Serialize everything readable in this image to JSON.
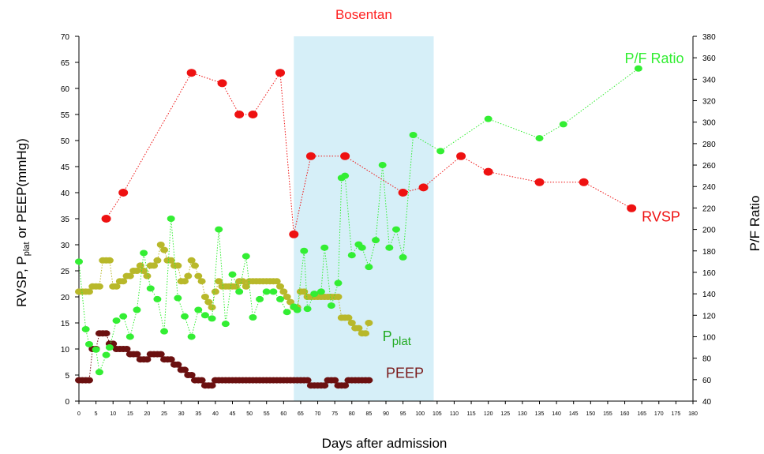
{
  "chart_data": {
    "type": "scatter",
    "x_label": "Days  after admission",
    "y_left_label": "RVSP, P",
    "y_left_sub": "plat",
    "y_left_label_rest": " or PEEP(mmHg)",
    "y_right_label": "P/F Ratio",
    "x_ticks": [
      0,
      5,
      10,
      15,
      20,
      25,
      30,
      35,
      40,
      45,
      50,
      55,
      60,
      65,
      70,
      75,
      80,
      85,
      90,
      95,
      100,
      105,
      110,
      115,
      120,
      125,
      130,
      135,
      140,
      145,
      150,
      155,
      160,
      165,
      170,
      175,
      180
    ],
    "y_left_ticks": [
      0,
      5,
      10,
      15,
      20,
      25,
      30,
      35,
      40,
      45,
      50,
      55,
      60,
      65,
      70
    ],
    "y_right_ticks": [
      40,
      60,
      80,
      100,
      120,
      140,
      160,
      180,
      200,
      220,
      240,
      260,
      280,
      300,
      320,
      340,
      360,
      380
    ],
    "xlim": [
      0,
      180
    ],
    "ylim_left": [
      0,
      70
    ],
    "ylim_right": [
      40,
      380
    ],
    "shaded_region": {
      "label": "Bosentan",
      "x_start": 63,
      "x_end": 104,
      "color": "#d6eff8",
      "label_color": "#ff2020"
    },
    "series": [
      {
        "name": "RVSP",
        "axis": "left",
        "color": "#ee1111",
        "label_color": "#ee1111",
        "label_x": 165,
        "label_y": 34.5,
        "x": [
          8,
          13,
          33,
          42,
          47,
          51,
          59,
          63,
          68,
          78,
          95,
          101,
          112,
          120,
          135,
          148,
          162
        ],
        "y": [
          35,
          40,
          63,
          61,
          55,
          55,
          63,
          32,
          47,
          47,
          40,
          41,
          47,
          44,
          42,
          42,
          37
        ]
      },
      {
        "name": "P/F Ratio",
        "axis": "right",
        "color": "#33ee33",
        "label_color": "#33ee33",
        "label_x": 160,
        "label_y": 355,
        "x": [
          0,
          2,
          3,
          5,
          6,
          8,
          9,
          11,
          13,
          15,
          17,
          19,
          21,
          23,
          25,
          27,
          29,
          31,
          33,
          35,
          37,
          39,
          41,
          43,
          45,
          47,
          49,
          51,
          53,
          55,
          57,
          59,
          61,
          63,
          64,
          66,
          67,
          69,
          71,
          72,
          74,
          76,
          77,
          78,
          80,
          82,
          83,
          85,
          87,
          89,
          91,
          93,
          95,
          98,
          106,
          120,
          135,
          142,
          164
        ],
        "x_jitter": [
          0,
          1,
          1,
          1,
          1,
          1,
          1,
          1,
          1,
          1,
          1,
          1,
          1,
          1,
          1,
          1,
          1,
          1,
          1,
          1,
          1,
          1,
          1,
          1,
          1,
          1,
          1,
          1,
          1,
          1,
          1,
          1,
          1,
          1,
          1,
          1,
          1,
          1,
          1,
          1,
          1,
          1,
          1,
          1,
          1,
          1,
          1,
          1,
          1,
          1,
          1,
          1,
          1,
          1,
          1,
          1,
          1,
          1,
          1
        ],
        "y": [
          170,
          107,
          93,
          88,
          67,
          83,
          90,
          115,
          119,
          100,
          125,
          178,
          145,
          135,
          105,
          210,
          136,
          119,
          100,
          125,
          120,
          117,
          200,
          112,
          158,
          142,
          175,
          118,
          135,
          142,
          142,
          135,
          123,
          128,
          125,
          180,
          126,
          140,
          142,
          183,
          129,
          150,
          248,
          250,
          176,
          186,
          183,
          165,
          190,
          260,
          183,
          200,
          174,
          288,
          273,
          303,
          285,
          298,
          350
        ]
      },
      {
        "name": "P",
        "name_sub": "plat",
        "axis": "left",
        "color": "#b8b82a",
        "label_color": "#22aa22",
        "label_x": 89,
        "label_y": 11.5,
        "x": [
          0,
          1,
          2,
          3,
          4,
          5,
          6,
          7,
          8,
          9,
          10,
          11,
          12,
          13,
          14,
          15,
          16,
          17,
          18,
          19,
          20,
          21,
          22,
          23,
          24,
          25,
          26,
          27,
          28,
          29,
          30,
          31,
          32,
          33,
          34,
          35,
          36,
          37,
          38,
          39,
          40,
          41,
          42,
          43,
          44,
          45,
          46,
          47,
          48,
          49,
          50,
          51,
          52,
          53,
          54,
          55,
          56,
          57,
          58,
          59,
          60,
          61,
          62,
          63,
          64,
          65,
          66,
          67,
          68,
          69,
          70,
          71,
          72,
          73,
          74,
          75,
          76,
          77,
          78,
          79,
          80,
          81,
          82,
          83,
          84,
          85
        ],
        "y": [
          21,
          21,
          21,
          21,
          22,
          22,
          22,
          27,
          27,
          27,
          22,
          22,
          23,
          23,
          24,
          24,
          25,
          25,
          26,
          25,
          24,
          26,
          26,
          27,
          30,
          29,
          27,
          27,
          26,
          26,
          23,
          23,
          24,
          27,
          26,
          24,
          23,
          20,
          19,
          18,
          21,
          23,
          22,
          22,
          22,
          22,
          22,
          23,
          23,
          22,
          23,
          23,
          23,
          23,
          23,
          23,
          23,
          23,
          23,
          22,
          21,
          20,
          19,
          18,
          18,
          21,
          21,
          20,
          20,
          20,
          20,
          20,
          20,
          20,
          20,
          20,
          20,
          16,
          16,
          16,
          15,
          14,
          14,
          13,
          13,
          15
        ]
      },
      {
        "name": "PEEP",
        "axis": "left",
        "color": "#6b1010",
        "label_color": "#7a1a1a",
        "label_x": 90,
        "label_y": 4.5,
        "x": [
          0,
          1,
          2,
          3,
          4,
          5,
          6,
          7,
          8,
          9,
          10,
          11,
          12,
          13,
          14,
          15,
          16,
          17,
          18,
          19,
          20,
          21,
          22,
          23,
          24,
          25,
          26,
          27,
          28,
          29,
          30,
          31,
          32,
          33,
          34,
          35,
          36,
          37,
          38,
          39,
          40,
          41,
          42,
          43,
          44,
          45,
          46,
          47,
          48,
          49,
          50,
          51,
          52,
          53,
          54,
          55,
          56,
          57,
          58,
          59,
          60,
          61,
          62,
          63,
          64,
          65,
          66,
          67,
          68,
          69,
          70,
          71,
          72,
          73,
          74,
          75,
          76,
          77,
          78,
          79,
          80,
          81,
          82,
          83,
          84,
          85
        ],
        "y": [
          4,
          4,
          4,
          4,
          10,
          10,
          13,
          13,
          13,
          11,
          11,
          10,
          10,
          10,
          10,
          9,
          9,
          9,
          8,
          8,
          8,
          9,
          9,
          9,
          9,
          8,
          8,
          8,
          7,
          7,
          6,
          6,
          5,
          5,
          4,
          4,
          4,
          3,
          3,
          3,
          4,
          4,
          4,
          4,
          4,
          4,
          4,
          4,
          4,
          4,
          4,
          4,
          4,
          4,
          4,
          4,
          4,
          4,
          4,
          4,
          4,
          4,
          4,
          4,
          4,
          4,
          4,
          4,
          3,
          3,
          3,
          3,
          3,
          4,
          4,
          4,
          3,
          3,
          3,
          4,
          4,
          4,
          4,
          4,
          4,
          4
        ]
      }
    ]
  }
}
